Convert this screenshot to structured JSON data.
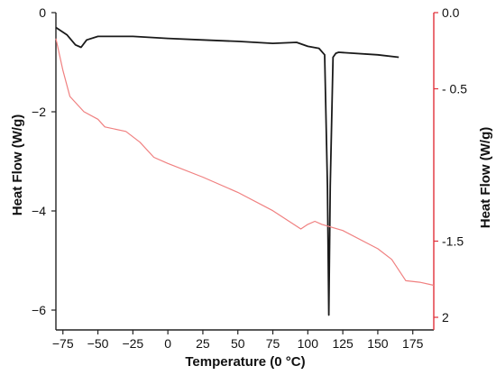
{
  "chart_data": {
    "type": "line",
    "xlabel": "Temperature (0 °C)",
    "ylabel_left": "Heat Flow (W/g)",
    "ylabel_right": "Heat Flow (W/g)",
    "xlim": [
      -80,
      190
    ],
    "ylim_left": [
      -6.4,
      0
    ],
    "ylim_right": [
      2,
      0
    ],
    "x_ticks": [
      {
        "value": -75,
        "label": "−75"
      },
      {
        "value": -50,
        "label": "−50"
      },
      {
        "value": -25,
        "label": "−25"
      },
      {
        "value": 0,
        "label": "0"
      },
      {
        "value": 25,
        "label": "25"
      },
      {
        "value": 50,
        "label": "50"
      },
      {
        "value": 75,
        "label": "75"
      },
      {
        "value": 100,
        "label": "100"
      },
      {
        "value": 125,
        "label": "125"
      },
      {
        "value": 150,
        "label": "150"
      },
      {
        "value": 175,
        "label": "175"
      }
    ],
    "y_left_ticks": [
      {
        "value": 0,
        "label": "0"
      },
      {
        "value": -2,
        "label": "−2"
      },
      {
        "value": -4,
        "label": "−4"
      },
      {
        "value": -6,
        "label": "−6"
      }
    ],
    "y_right_ticks": [
      {
        "value": 0,
        "label": "0.0"
      },
      {
        "value": 0.5,
        "label": "- 0.5"
      },
      {
        "value": 1.5,
        "label": "-1.5"
      },
      {
        "value": 2,
        "label": "2"
      }
    ],
    "colors": {
      "left_series": "#1a1a1a",
      "right_series": "#f08080",
      "right_axis": "#e0303a",
      "left_axis": "#222222"
    },
    "series": [
      {
        "axis": "left",
        "x": [
          -80,
          -72,
          -66,
          -62,
          -58,
          -50,
          -25,
          0,
          25,
          50,
          75,
          92,
          100,
          108,
          112,
          114,
          115,
          116,
          118,
          120,
          122,
          150,
          165
        ],
        "y": [
          -0.3,
          -0.45,
          -0.65,
          -0.7,
          -0.55,
          -0.48,
          -0.48,
          -0.52,
          -0.55,
          -0.58,
          -0.62,
          -0.6,
          -0.68,
          -0.72,
          -0.85,
          -3.5,
          -6.1,
          -3.5,
          -0.9,
          -0.82,
          -0.8,
          -0.85,
          -0.9
        ]
      },
      {
        "axis": "right",
        "x": [
          -80,
          -75,
          -70,
          -60,
          -50,
          -45,
          -30,
          -20,
          -10,
          0,
          25,
          50,
          75,
          95,
          100,
          105,
          110,
          125,
          150,
          160,
          170,
          180,
          190
        ],
        "y": [
          0.17,
          0.38,
          0.55,
          0.65,
          0.7,
          0.75,
          0.78,
          0.85,
          0.95,
          0.99,
          1.08,
          1.18,
          1.3,
          1.42,
          1.39,
          1.37,
          1.39,
          1.43,
          1.55,
          1.62,
          1.76,
          1.77,
          1.79
        ]
      }
    ]
  }
}
